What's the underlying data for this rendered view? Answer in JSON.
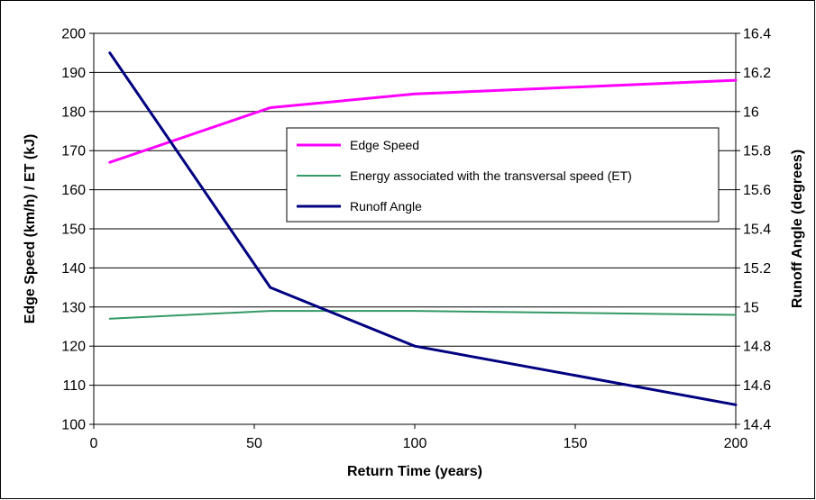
{
  "chart_data": {
    "type": "line",
    "xlabel": "Return Time (years)",
    "ylabel": "Edge Speed (km/h) / ET (kJ)",
    "y2label": "Runoff Angle (degrees)",
    "xlim": [
      0,
      200
    ],
    "ylim": [
      100,
      200
    ],
    "y2lim": [
      14.4,
      16.4
    ],
    "xticks": [
      "0",
      "50",
      "100",
      "150",
      "200"
    ],
    "yticks": [
      "100",
      "110",
      "120",
      "130",
      "140",
      "150",
      "160",
      "170",
      "180",
      "190",
      "200"
    ],
    "y2ticks": [
      "14.4",
      "14.6",
      "14.8",
      "15",
      "15.2",
      "15.4",
      "15.6",
      "15.8",
      "16",
      "16.2",
      "16.4"
    ],
    "grid": "horizontal",
    "legend_position": "center-right",
    "series": [
      {
        "name": "Edge Speed",
        "axis": "left",
        "color": "#ff00ff",
        "points": [
          [
            5,
            167
          ],
          [
            55,
            181
          ],
          [
            100,
            184.5
          ],
          [
            200,
            188
          ]
        ]
      },
      {
        "name": "Energy associated with the transversal speed (ET)",
        "axis": "left",
        "color": "#339966",
        "points": [
          [
            5,
            127
          ],
          [
            55,
            129
          ],
          [
            100,
            129
          ],
          [
            200,
            128
          ]
        ]
      },
      {
        "name": "Runoff Angle",
        "axis": "right",
        "color": "#000080",
        "points": [
          [
            5,
            16.3
          ],
          [
            55,
            15.1
          ],
          [
            100,
            14.8
          ],
          [
            200,
            14.5
          ]
        ]
      }
    ]
  }
}
